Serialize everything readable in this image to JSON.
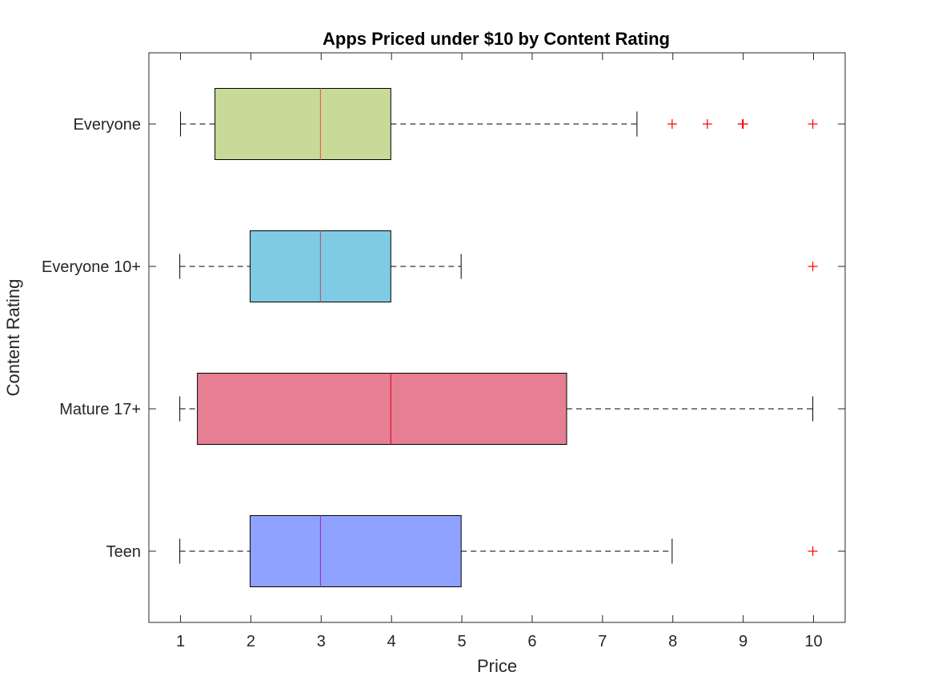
{
  "chart_data": {
    "type": "boxplot",
    "orientation": "horizontal",
    "title": "Apps Priced under $10 by Content Rating",
    "xlabel": "Price",
    "ylabel": "Content Rating",
    "xlim": [
      0.55,
      10.45
    ],
    "xticks": [
      "1",
      "2",
      "3",
      "4",
      "5",
      "6",
      "7",
      "8",
      "9",
      "10"
    ],
    "grid": false,
    "categories": [
      "Everyone",
      "Everyone 10+",
      "Mature 17+",
      "Teen"
    ],
    "series": [
      {
        "category": "Everyone",
        "color": "#c8da98",
        "median_color": "#e06a4a",
        "whisker_low": 1.0,
        "q1": 1.49,
        "median": 2.99,
        "q3": 3.99,
        "whisker_high": 7.49,
        "outliers": [
          7.99,
          8.49,
          8.99,
          9.0,
          9.99
        ]
      },
      {
        "category": "Everyone 10+",
        "color": "#7fcbe4",
        "median_color": "#b0607a",
        "whisker_low": 0.99,
        "q1": 1.99,
        "median": 2.99,
        "q3": 3.99,
        "whisker_high": 4.99,
        "outliers": [
          9.99
        ]
      },
      {
        "category": "Mature 17+",
        "color": "#e67f94",
        "median_color": "#e0102a",
        "whisker_low": 0.99,
        "q1": 1.24,
        "median": 3.99,
        "q3": 6.49,
        "whisker_high": 9.99,
        "outliers": []
      },
      {
        "category": "Teen",
        "color": "#8fa2ff",
        "median_color": "#9a3ab0",
        "whisker_low": 0.99,
        "q1": 1.99,
        "median": 2.99,
        "q3": 4.99,
        "whisker_high": 7.99,
        "outliers": [
          9.99
        ]
      }
    ],
    "outlier_color": "#ff0000"
  }
}
